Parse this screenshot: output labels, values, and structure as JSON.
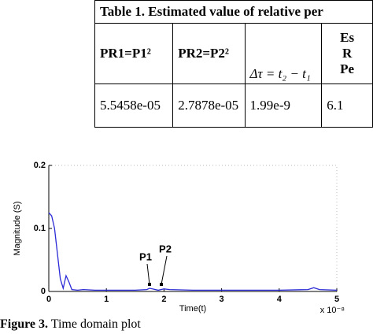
{
  "table": {
    "title": "Table 1. Estimated value of relative per",
    "headers": [
      "PR1=P1²",
      "PR2=P2²",
      "Δτ = t₂ − t₁",
      [
        "Es",
        "R",
        "Pe"
      ]
    ],
    "rows": [
      [
        "5.5458e-05",
        "2.7878e-05",
        "1.99e-9",
        "6.1"
      ]
    ]
  },
  "chart_data": {
    "type": "line",
    "ylabel": "Magnitude (S)",
    "xlabel": "Time(t)",
    "x_multiplier": "x 10⁻⁸",
    "x": [
      0,
      0.05,
      0.1,
      0.15,
      0.2,
      0.25,
      0.3,
      0.35,
      0.4,
      0.5,
      0.6,
      0.8,
      1,
      1.2,
      1.5,
      1.7,
      1.75,
      1.8,
      1.9,
      2,
      2.1,
      2.5,
      3,
      3.5,
      4,
      4.5,
      4.6,
      4.7,
      5
    ],
    "series": [
      {
        "color": "#2b2bd6",
        "values": [
          0.125,
          0.12,
          0.1,
          0.06,
          0.02,
          0.005,
          0.025,
          0.015,
          0.003,
          0.002,
          0.003,
          0.002,
          0.002,
          0.002,
          0.002,
          0.003,
          0.005,
          0.004,
          0.002,
          0.004,
          0.003,
          0.002,
          0.002,
          0.002,
          0.002,
          0.003,
          0.006,
          0.003,
          0.002
        ]
      }
    ],
    "xlim": [
      0,
      5
    ],
    "xticks": [
      0,
      1,
      2,
      3,
      4,
      5
    ],
    "ylim": [
      0,
      0.2
    ],
    "yticks": [
      0,
      0.1,
      0.2
    ],
    "grid": false,
    "annotations": [
      "P1",
      "P2"
    ]
  },
  "caption": {
    "label": "Figure 3.",
    "text": "Time domain plot"
  }
}
